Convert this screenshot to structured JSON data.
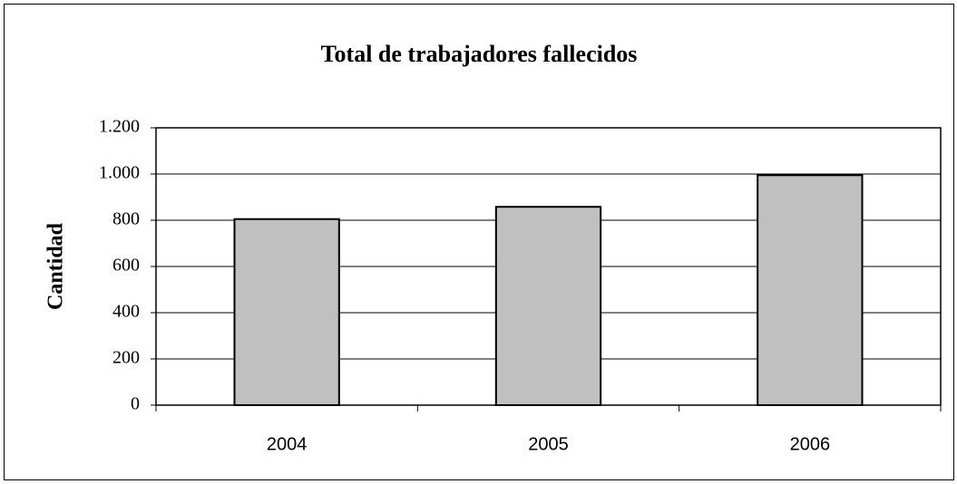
{
  "chart_data": {
    "type": "bar",
    "title": "Total de trabajadores fallecidos",
    "y_label": "Cantidad",
    "categories": [
      "2004",
      "2005",
      "2006"
    ],
    "values": [
      805,
      858,
      995
    ],
    "color": "#c0c0c0",
    "ylim": [
      0,
      1200
    ],
    "yticks": [
      0,
      200,
      400,
      600,
      800,
      {
        "value": 1000,
        "label": "1.000"
      },
      {
        "value": 1200,
        "label": "1.200"
      }
    ],
    "grid": true
  }
}
